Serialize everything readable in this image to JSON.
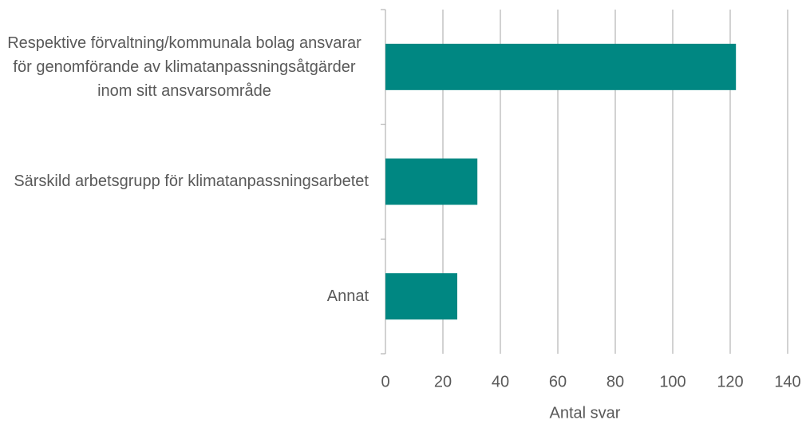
{
  "chart_data": {
    "type": "barh",
    "categories": [
      "Respektive förvaltning/kommunala bolag ansvarar för genomförande av klimatanpassningsåtgärder inom sitt ansvarsområde",
      "Särskild arbetsgrupp för klimatanpassningsarbetet",
      "Annat"
    ],
    "values": [
      122,
      32,
      25
    ],
    "color": "#008782",
    "xlabel": "Antal svar",
    "xlim": [
      0,
      140
    ],
    "xticks": [
      0,
      20,
      40,
      60,
      80,
      100,
      120,
      140
    ],
    "grid": true
  }
}
